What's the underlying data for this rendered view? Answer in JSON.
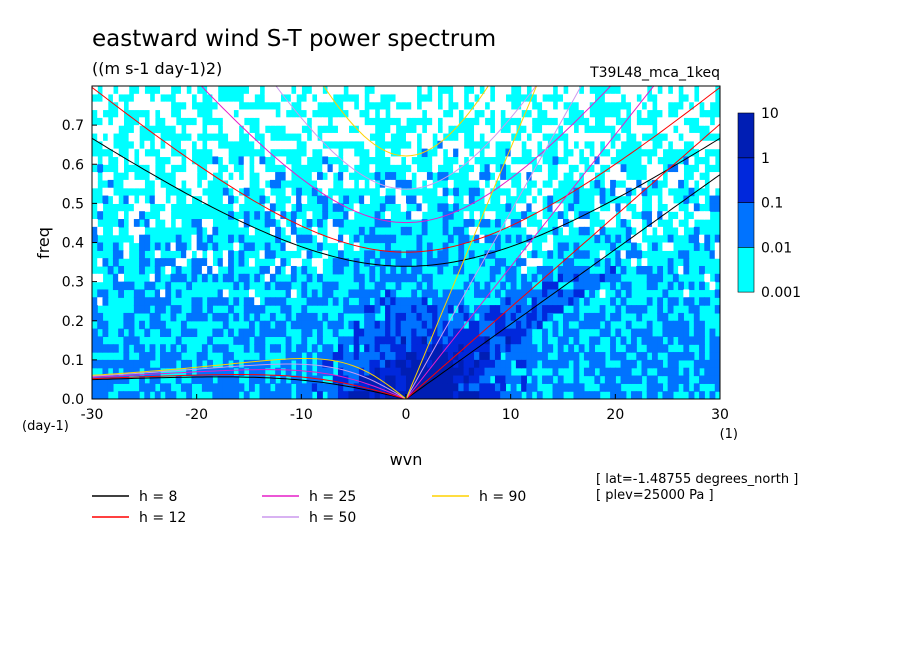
{
  "chart_data": {
    "type": "heatmap",
    "title": "eastward wind S-T power spectrum",
    "subtitle": "((m s-1 day-1)2)",
    "dataset_label": "T39L48_mca_1keq",
    "xlabel": "wvn",
    "ylabel": "freq",
    "x_unit": "(1)",
    "y_unit": "(day-1)",
    "xlim": [
      -30,
      30
    ],
    "ylim": [
      0,
      0.8
    ],
    "x_ticks": [
      -30,
      -20,
      -10,
      0,
      10,
      20,
      30
    ],
    "x_tick_labels": [
      "-30",
      "-20",
      "-10",
      "0",
      "10",
      "20",
      "30"
    ],
    "y_ticks": [
      0.0,
      0.1,
      0.2,
      0.3,
      0.4,
      0.5,
      0.6,
      0.7
    ],
    "y_tick_labels": [
      "0.0",
      "0.1",
      "0.2",
      "0.3",
      "0.4",
      "0.5",
      "0.6",
      "0.7"
    ],
    "colorbar": {
      "levels": [
        "0.001",
        "0.01",
        "0.1",
        "1",
        "10"
      ],
      "colors": [
        "#00ffff",
        "#0073ff",
        "#0028dc",
        "#001eb4",
        "#3c14b4"
      ]
    },
    "background_color": "#ffffff",
    "dispersion_curves": [
      {
        "label": "h =  8",
        "h": 8,
        "color": "#000000"
      },
      {
        "label": "h = 12",
        "h": 12,
        "color": "#ff0000"
      },
      {
        "label": "h = 25",
        "h": 25,
        "color": "#e61ec8"
      },
      {
        "label": "h = 50",
        "h": 50,
        "color": "#cc99ee"
      },
      {
        "label": "h = 90",
        "h": 90,
        "color": "#ffd200"
      }
    ],
    "annotations": [
      "[ lat=-1.48755 degrees_north ]",
      "[ plev=25000 Pa ]"
    ]
  }
}
